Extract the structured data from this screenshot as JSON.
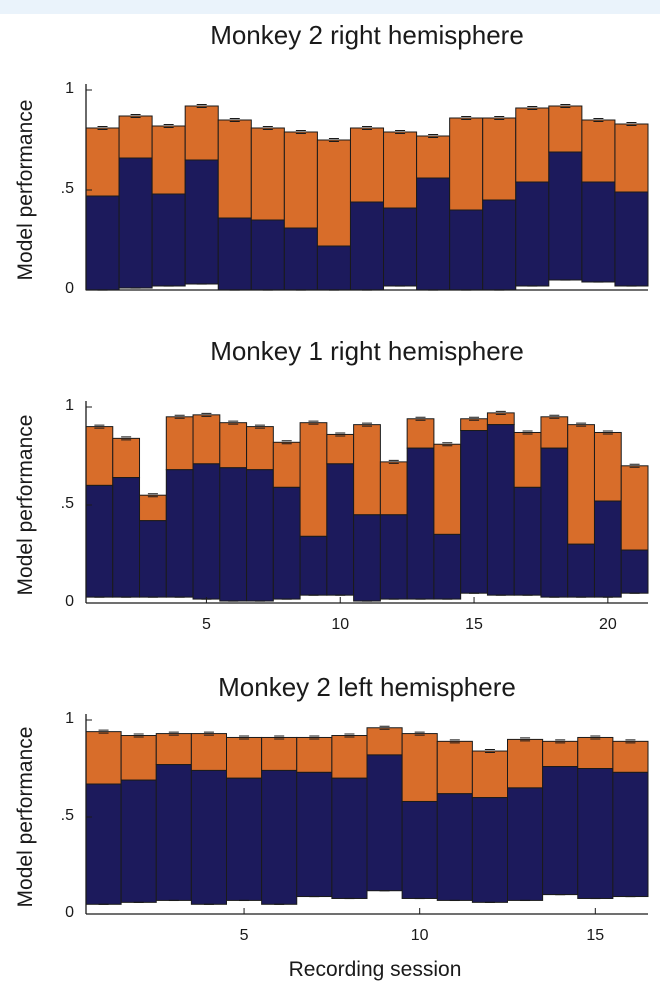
{
  "colors": {
    "dark": "#1c1a5c",
    "orange": "#d86d2a",
    "frame": "#1a1a1a"
  },
  "chart_data": [
    {
      "type": "bar",
      "stacked": true,
      "title": "Monkey 2 right hemisphere",
      "ylabel": "Model performance",
      "xlabel": "",
      "ylim": [
        0,
        1
      ],
      "yticks": [
        0,
        0.5,
        1
      ],
      "ytick_labels": [
        "0",
        ".5",
        "1"
      ],
      "xticks": [],
      "xtick_labels": [],
      "x": [
        1,
        2,
        3,
        4,
        5,
        6,
        7,
        8,
        9,
        10,
        11,
        12,
        13,
        14,
        15,
        16,
        17
      ],
      "base": [
        0.0,
        0.01,
        0.02,
        0.03,
        0.0,
        0.0,
        0.0,
        0.0,
        0.0,
        0.02,
        0.0,
        0.0,
        0.0,
        0.02,
        0.05,
        0.04,
        0.02
      ],
      "dark_top": [
        0.47,
        0.66,
        0.48,
        0.65,
        0.36,
        0.35,
        0.31,
        0.22,
        0.44,
        0.41,
        0.56,
        0.4,
        0.45,
        0.54,
        0.69,
        0.54,
        0.49
      ],
      "total": [
        0.81,
        0.87,
        0.82,
        0.92,
        0.85,
        0.81,
        0.79,
        0.75,
        0.81,
        0.79,
        0.77,
        0.86,
        0.86,
        0.91,
        0.92,
        0.85,
        0.83
      ]
    },
    {
      "type": "bar",
      "stacked": true,
      "title": "Monkey 1 right hemisphere",
      "ylabel": "Model performance",
      "xlabel": "",
      "ylim": [
        0,
        1
      ],
      "yticks": [
        0,
        0.5,
        1
      ],
      "ytick_labels": [
        "0",
        ".5",
        "1"
      ],
      "xticks": [
        5,
        10,
        15,
        20
      ],
      "xtick_labels": [
        "5",
        "10",
        "15",
        "20"
      ],
      "x": [
        1,
        2,
        3,
        4,
        5,
        6,
        7,
        8,
        9,
        10,
        11,
        12,
        13,
        14,
        15,
        16,
        17,
        18,
        19,
        20,
        21
      ],
      "base": [
        0.03,
        0.03,
        0.03,
        0.03,
        0.02,
        0.01,
        0.01,
        0.02,
        0.04,
        0.04,
        0.01,
        0.02,
        0.02,
        0.02,
        0.05,
        0.04,
        0.04,
        0.03,
        0.03,
        0.03,
        0.05
      ],
      "dark_top": [
        0.6,
        0.64,
        0.42,
        0.68,
        0.71,
        0.69,
        0.68,
        0.59,
        0.34,
        0.71,
        0.45,
        0.45,
        0.79,
        0.35,
        0.88,
        0.91,
        0.59,
        0.79,
        0.3,
        0.52,
        0.27
      ],
      "total": [
        0.9,
        0.84,
        0.55,
        0.95,
        0.96,
        0.92,
        0.9,
        0.82,
        0.92,
        0.86,
        0.91,
        0.72,
        0.94,
        0.81,
        0.94,
        0.97,
        0.87,
        0.95,
        0.91,
        0.87,
        0.7
      ]
    },
    {
      "type": "bar",
      "stacked": true,
      "title": "Monkey 2 left hemisphere",
      "ylabel": "Model performance",
      "xlabel": "Recording session",
      "ylim": [
        0,
        1
      ],
      "yticks": [
        0,
        0.5,
        1
      ],
      "ytick_labels": [
        "0",
        ".5",
        "1"
      ],
      "xticks": [
        5,
        10,
        15
      ],
      "xtick_labels": [
        "5",
        "10",
        "15"
      ],
      "x": [
        1,
        2,
        3,
        4,
        5,
        6,
        7,
        8,
        9,
        10,
        11,
        12,
        13,
        14,
        15,
        16
      ],
      "base": [
        0.05,
        0.06,
        0.07,
        0.05,
        0.07,
        0.05,
        0.09,
        0.08,
        0.12,
        0.08,
        0.07,
        0.06,
        0.07,
        0.1,
        0.08,
        0.09
      ],
      "dark_top": [
        0.67,
        0.69,
        0.77,
        0.74,
        0.7,
        0.74,
        0.73,
        0.7,
        0.82,
        0.58,
        0.62,
        0.6,
        0.65,
        0.76,
        0.75,
        0.73
      ],
      "total": [
        0.94,
        0.92,
        0.93,
        0.93,
        0.91,
        0.91,
        0.91,
        0.92,
        0.96,
        0.93,
        0.89,
        0.84,
        0.9,
        0.89,
        0.91,
        0.89
      ]
    }
  ]
}
